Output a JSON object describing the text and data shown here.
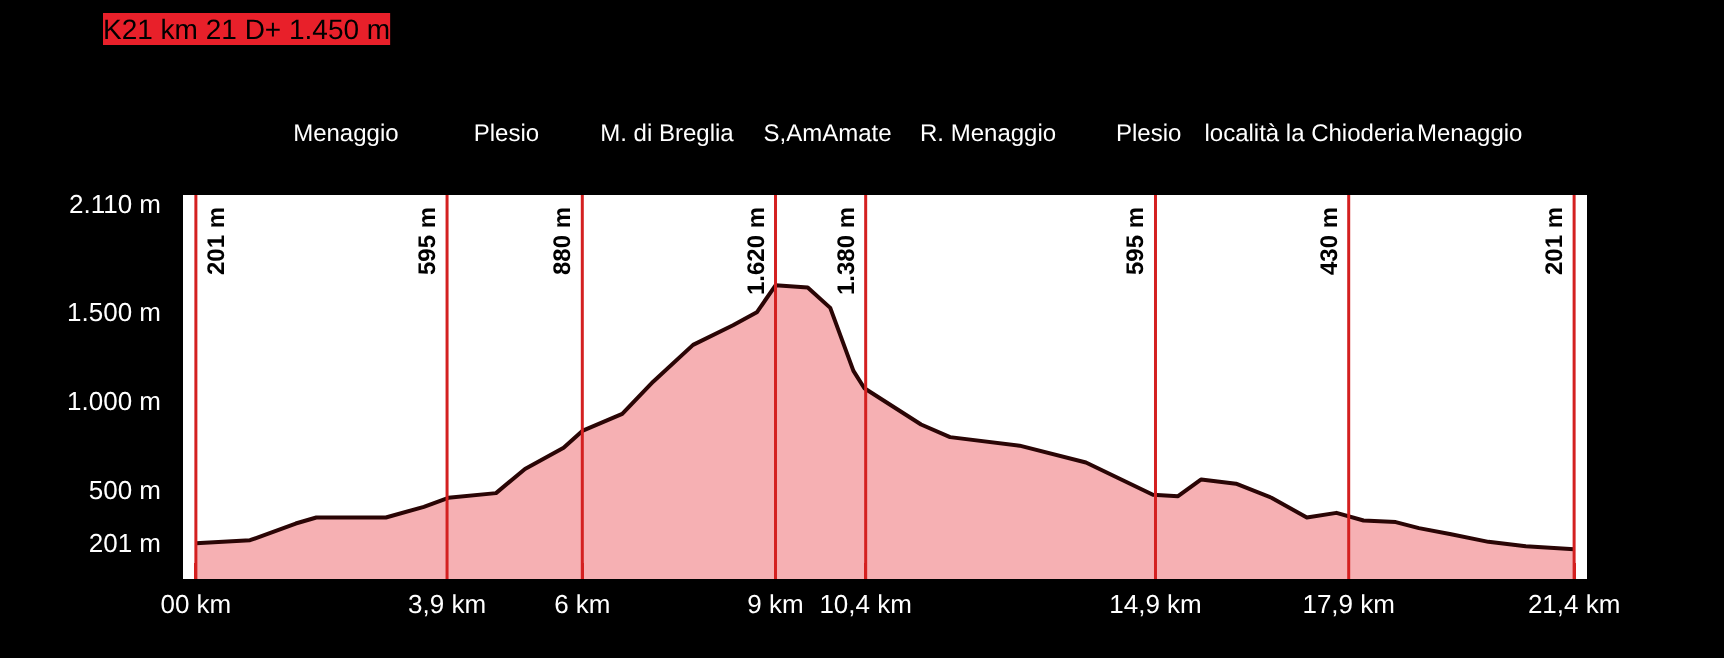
{
  "chart_data": {
    "type": "area",
    "title": "K21 km 21 D+ 1.450 m",
    "x": [
      0,
      0.84,
      1.55,
      1.87,
      2.95,
      3.54,
      3.92,
      4.66,
      5.11,
      5.71,
      6.0,
      6.62,
      7.1,
      7.72,
      8.34,
      8.71,
      9.0,
      9.5,
      9.85,
      10.21,
      10.38,
      11.26,
      11.71,
      12.79,
      13.82,
      14.86,
      15.25,
      15.61,
      16.15,
      16.7,
      17.25,
      17.71,
      18.13,
      18.63,
      18.99,
      19.49,
      20.07,
      20.65,
      21.4
    ],
    "series": [
      {
        "color": "#f6b0b3",
        "values": [
          201,
          218,
          312,
          346,
          346,
          406,
          457,
          483,
          619,
          738,
          833,
          929,
          1110,
          1317,
          1427,
          1500,
          1652,
          1640,
          1525,
          1171,
          1073,
          869,
          798,
          750,
          655,
          474,
          466,
          560,
          536,
          457,
          346,
          372,
          329,
          320,
          286,
          252,
          209,
          184,
          167
        ]
      }
    ],
    "xlim": [
      -0.2,
      21.6
    ],
    "xticks": [
      {
        "value": 0,
        "label": "00 km"
      },
      {
        "value": 3.9,
        "label": "3,9 km"
      },
      {
        "value": 6,
        "label": "6 km"
      },
      {
        "value": 9,
        "label": "9 km"
      },
      {
        "value": 10.4,
        "label": "10,4 km"
      },
      {
        "value": 14.9,
        "label": "14,9 km"
      },
      {
        "value": 17.9,
        "label": "17,9 km"
      },
      {
        "value": 21.4,
        "label": "21,4 km"
      }
    ],
    "annotations": [
      "Menaggio",
      "Plesio",
      "M. di Breglia",
      "S,AmAmate",
      "R. Menaggio",
      "Plesio",
      "località la Chioderia",
      "Menaggio"
    ],
    "ylim": [
      0,
      2160
    ],
    "yticks": [
      {
        "value": 201,
        "label": "201 m"
      },
      {
        "value": 500,
        "label": "500 m"
      },
      {
        "value": 1000,
        "label": "1.000 m"
      },
      {
        "value": 1500,
        "label": "1.500 m"
      },
      {
        "value": 2110,
        "label": "2.110 m"
      }
    ],
    "ref_lines": [
      {
        "axis": "x",
        "value": 0,
        "label": "201 m",
        "color": "#d42020"
      },
      {
        "axis": "x",
        "value": 3.9,
        "label": "595 m",
        "color": "#d42020"
      },
      {
        "axis": "x",
        "value": 6,
        "label": "880 m",
        "color": "#d42020"
      },
      {
        "axis": "x",
        "value": 9,
        "label": "1.620 m",
        "color": "#d42020"
      },
      {
        "axis": "x",
        "value": 10.4,
        "label": "1.380 m",
        "color": "#d42020"
      },
      {
        "axis": "x",
        "value": 14.9,
        "label": "595 m",
        "color": "#d42020"
      },
      {
        "axis": "x",
        "value": 17.9,
        "label": "430 m",
        "color": "#d42020"
      },
      {
        "axis": "x",
        "value": 21.4,
        "label": "201 m",
        "color": "#d42020"
      }
    ],
    "grid": false
  }
}
